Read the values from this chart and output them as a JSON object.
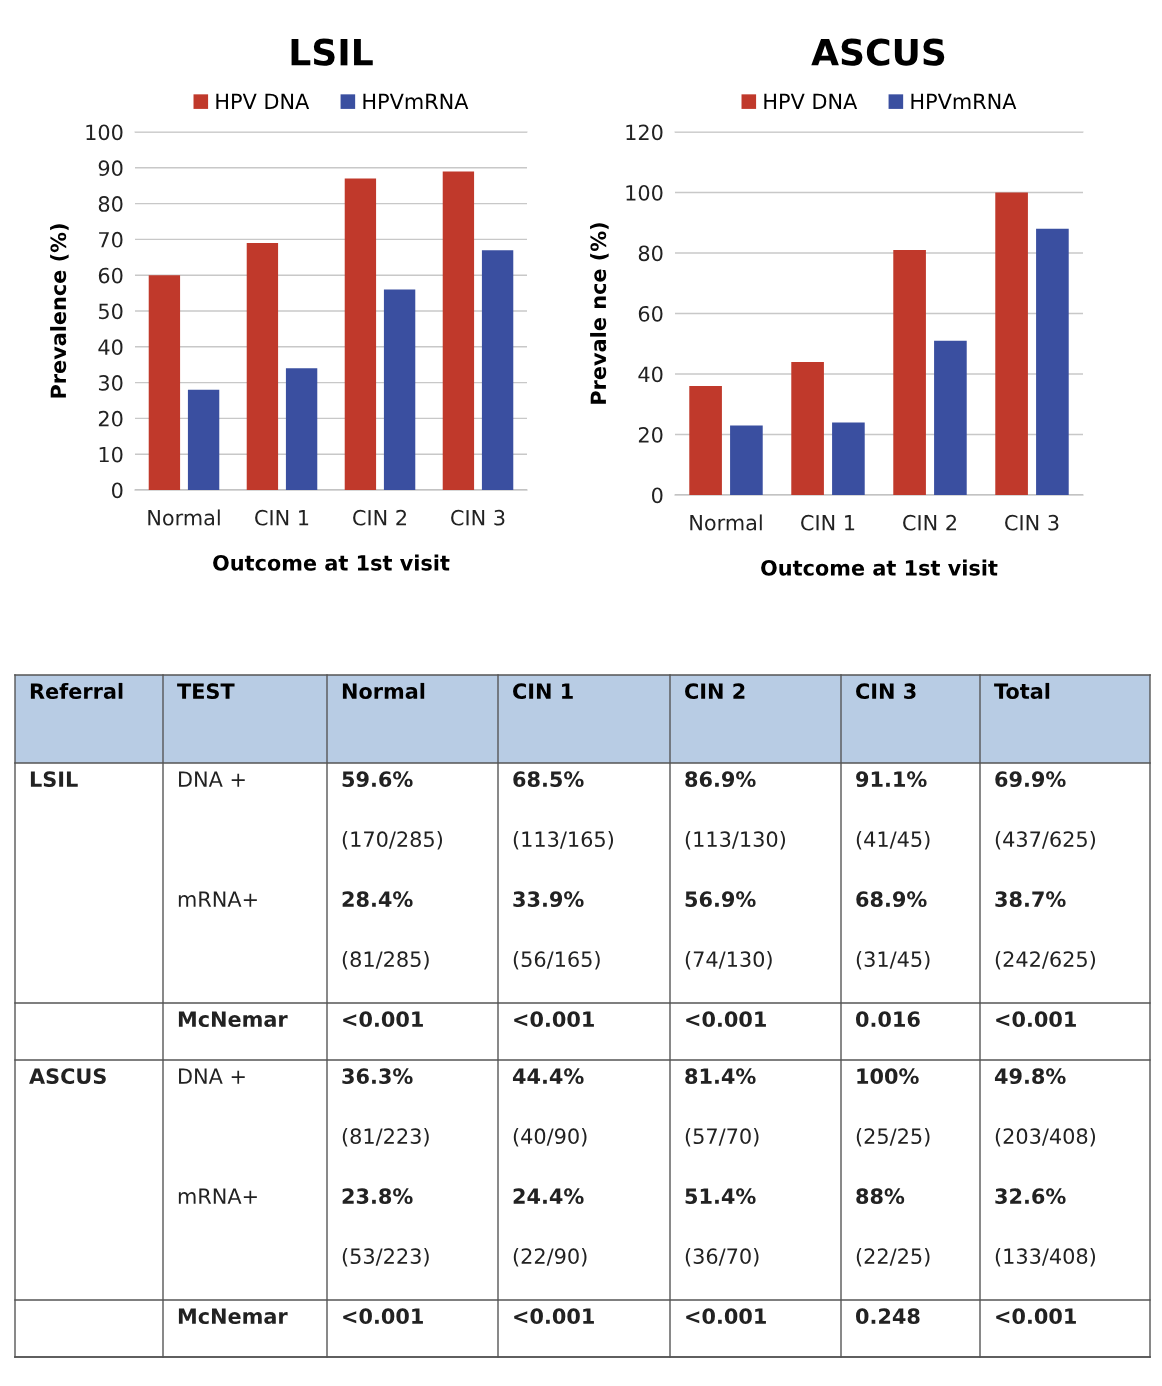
{
  "chart_data": [
    {
      "type": "bar",
      "title": "LSIL",
      "xlabel": "Outcome at 1st visit",
      "ylabel": "Prevalence (%)",
      "categories": [
        "Normal",
        "CIN 1",
        "CIN 2",
        "CIN 3"
      ],
      "series": [
        {
          "name": "HPV DNA",
          "color": "#c0392b",
          "values": [
            60,
            69,
            87,
            89
          ]
        },
        {
          "name": "HPVmRNA",
          "color": "#3a4fa0",
          "values": [
            28,
            34,
            56,
            67
          ]
        }
      ],
      "ylim": [
        0,
        100
      ],
      "yticks": [
        0,
        10,
        20,
        30,
        40,
        50,
        60,
        70,
        80,
        90,
        100
      ],
      "grid": "y",
      "legend": "top"
    },
    {
      "type": "bar",
      "title": "ASCUS",
      "xlabel": "Outcome at 1st visit",
      "ylabel": "Prevale nce (%)",
      "categories": [
        "Normal",
        "CIN 1",
        "CIN 2",
        "CIN 3"
      ],
      "series": [
        {
          "name": "HPV DNA",
          "color": "#c0392b",
          "values": [
            36,
            44,
            81,
            100
          ]
        },
        {
          "name": "HPVmRNA",
          "color": "#3a4fa0",
          "values": [
            23,
            24,
            51,
            88
          ]
        }
      ],
      "ylim": [
        0,
        120
      ],
      "yticks": [
        0,
        20,
        40,
        60,
        80,
        100,
        120
      ],
      "grid": "y",
      "legend": "top"
    },
    {
      "type": "other",
      "categories": [
        "Referral",
        "TEST",
        "Normal",
        "CIN 1",
        "CIN 2",
        "CIN 3",
        "Total"
      ],
      "cell_labels": [
        [
          "LSIL",
          "DNA +",
          "59.6%",
          "68.5%",
          "86.9%",
          "91.1%",
          "69.9%"
        ],
        [
          null,
          null,
          "(170/285)",
          "(113/165)",
          "(113/130)",
          "(41/45)",
          "(437/625)"
        ],
        [
          null,
          "mRNA+",
          "28.4%",
          "33.9%",
          "56.9%",
          "68.9%",
          "38.7%"
        ],
        [
          null,
          null,
          "(81/285)",
          "(56/165)",
          "(74/130)",
          "(31/45)",
          "(242/625)"
        ],
        [
          null,
          "McNemar",
          "<0.001",
          "<0.001",
          "<0.001",
          "0.016",
          "<0.001"
        ],
        [
          "ASCUS",
          "DNA +",
          "36.3%",
          "44.4%",
          "81.4%",
          "100%",
          "49.8%"
        ],
        [
          null,
          null,
          "(81/223)",
          "(40/90)",
          "(57/70)",
          "(25/25)",
          "(203/408)"
        ],
        [
          null,
          "mRNA+",
          "23.8%",
          "24.4%",
          "51.4%",
          "88%",
          "32.6%"
        ],
        [
          null,
          null,
          "(53/223)",
          "(22/90)",
          "(36/70)",
          "(22/25)",
          "(133/408)"
        ],
        [
          null,
          "McNemar",
          "<0.001",
          "<0.001",
          "<0.001",
          "0.248",
          "<0.001"
        ]
      ]
    }
  ]
}
